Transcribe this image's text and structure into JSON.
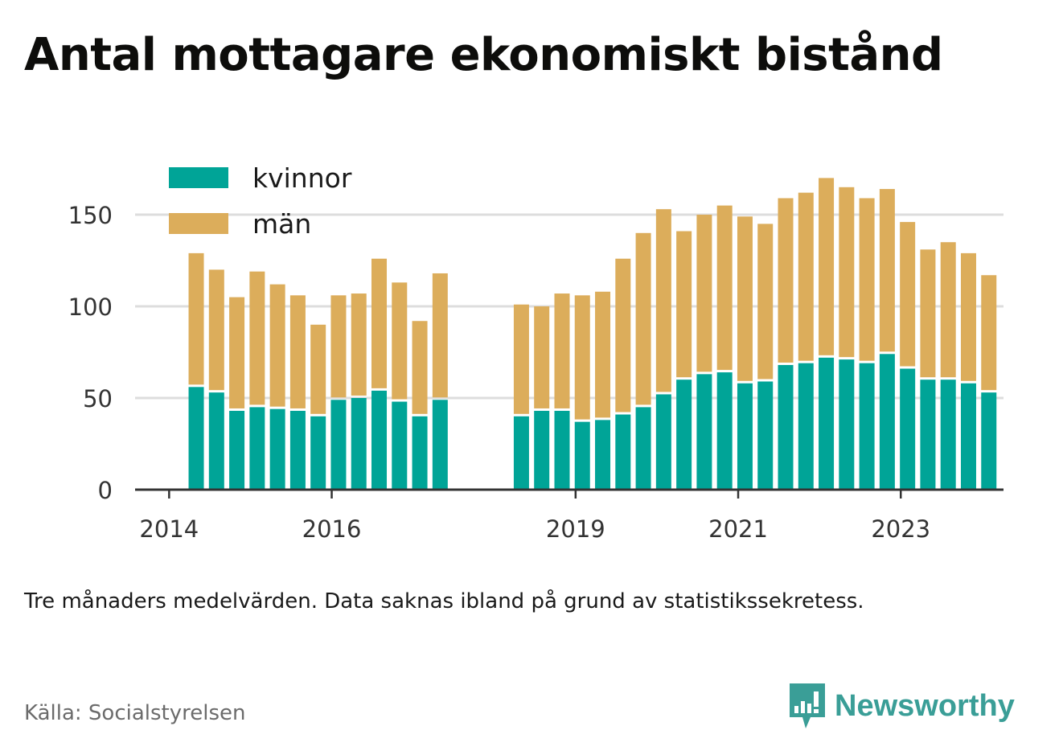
{
  "title": "Antal mottagare ekonomiskt bistånd",
  "note": "Tre månaders medelvärden. Data saknas ibland på grund av statistikssekretess.",
  "source": "Källa: Socialstyrelsen",
  "brand": "Newsworthy",
  "colors": {
    "kvinnor": "#00a497",
    "man": "#dcad5b",
    "grid": "#dddddd",
    "axis": "#333333",
    "brand": "#3a9e97"
  },
  "chart_data": {
    "type": "bar",
    "stacked": true,
    "title": "Antal mottagare ekonomiskt bistånd",
    "xlabel": "",
    "ylabel": "",
    "ylim": [
      0,
      175
    ],
    "y_ticks": [
      0,
      50,
      100,
      150
    ],
    "x_ticks": [
      "2014",
      "2016",
      "2019",
      "2021",
      "2023"
    ],
    "grid": true,
    "legend_position": "top-left",
    "x": [
      "2014-05",
      "2014-08",
      "2014-11",
      "2015-02",
      "2015-05",
      "2015-08",
      "2015-11",
      "2016-02",
      "2016-05",
      "2016-08",
      "2016-11",
      "2017-02",
      "2017-05",
      "2018-05",
      "2018-08",
      "2018-11",
      "2019-02",
      "2019-05",
      "2019-08",
      "2019-11",
      "2020-02",
      "2020-05",
      "2020-08",
      "2020-11",
      "2021-02",
      "2021-05",
      "2021-08",
      "2021-11",
      "2022-02",
      "2022-05",
      "2022-08",
      "2022-11",
      "2023-02",
      "2023-05",
      "2023-08",
      "2023-11",
      "2024-02"
    ],
    "series": [
      {
        "name": "kvinnor",
        "values": [
          56,
          53,
          43,
          45,
          44,
          43,
          40,
          49,
          50,
          54,
          48,
          40,
          49,
          40,
          43,
          43,
          37,
          38,
          41,
          45,
          52,
          60,
          63,
          64,
          58,
          59,
          68,
          69,
          72,
          71,
          69,
          74,
          66,
          60,
          60,
          58,
          53
        ]
      },
      {
        "name": "män",
        "values": [
          73,
          67,
          62,
          74,
          68,
          63,
          50,
          57,
          57,
          72,
          65,
          52,
          69,
          61,
          57,
          64,
          69,
          70,
          85,
          95,
          101,
          81,
          87,
          91,
          91,
          86,
          91,
          93,
          98,
          94,
          90,
          90,
          80,
          71,
          75,
          71,
          64
        ]
      }
    ]
  }
}
